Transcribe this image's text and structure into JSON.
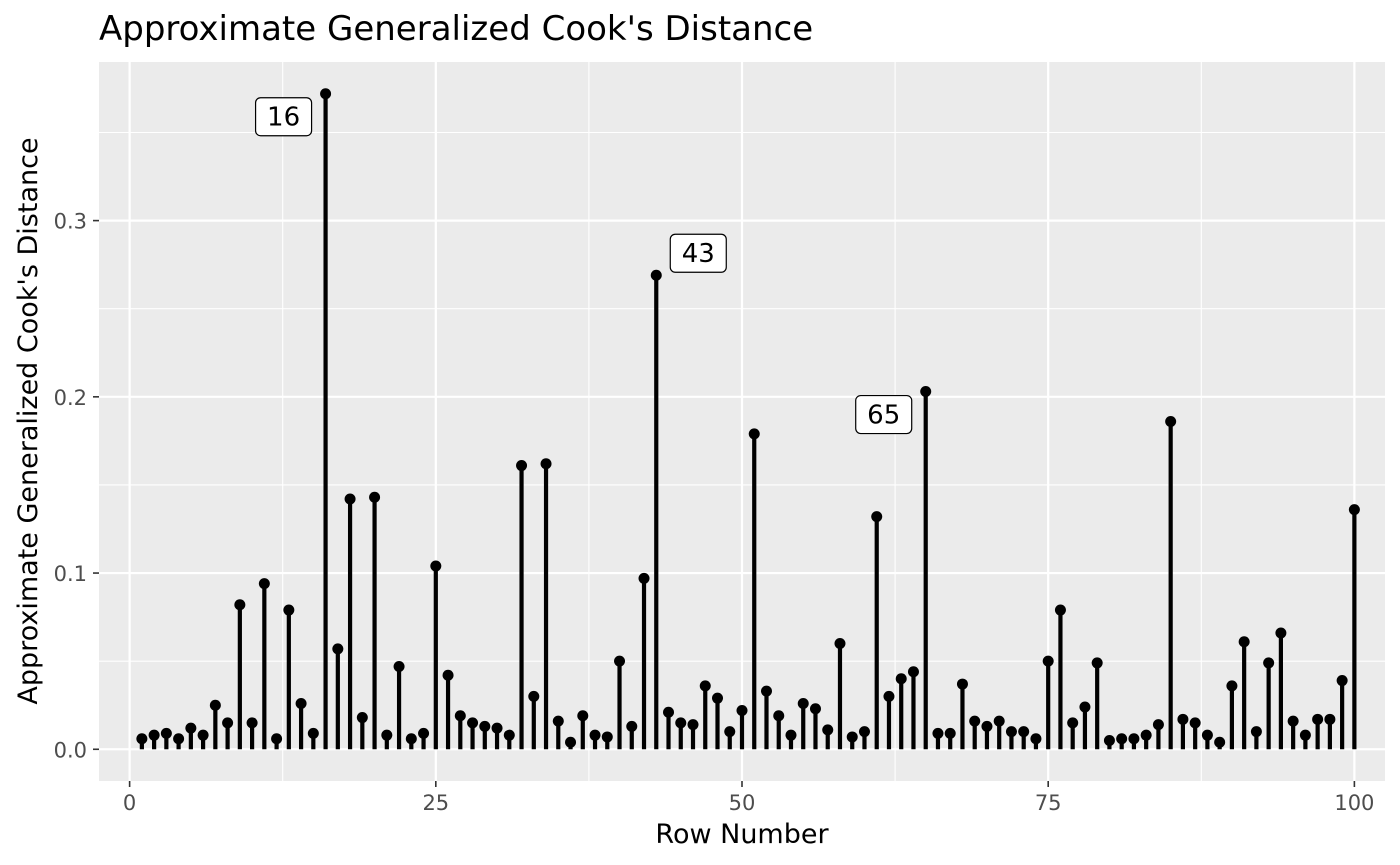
{
  "chart_data": {
    "type": "lollipop",
    "title": "Approximate Generalized Cook's Distance",
    "xlabel": "Row Number",
    "ylabel": "Approximate Generalized Cook's Distance",
    "xlim": [
      -2.5,
      102.5
    ],
    "ylim": [
      -0.018,
      0.39
    ],
    "x_ticks": [
      0,
      25,
      50,
      75,
      100
    ],
    "x_tick_labels": [
      "0",
      "25",
      "50",
      "75",
      "100"
    ],
    "y_ticks": [
      0.0,
      0.1,
      0.2,
      0.3
    ],
    "y_tick_labels": [
      "0.0",
      "0.1",
      "0.2",
      "0.3"
    ],
    "grid": true,
    "colors": {
      "panel": "#ebebeb",
      "grid": "#ffffff",
      "marks": "#000000"
    },
    "x": [
      1,
      2,
      3,
      4,
      5,
      6,
      7,
      8,
      9,
      10,
      11,
      12,
      13,
      14,
      15,
      16,
      17,
      18,
      19,
      20,
      21,
      22,
      23,
      24,
      25,
      26,
      27,
      28,
      29,
      30,
      31,
      32,
      33,
      34,
      35,
      36,
      37,
      38,
      39,
      40,
      41,
      42,
      43,
      44,
      45,
      46,
      47,
      48,
      49,
      50,
      51,
      52,
      53,
      54,
      55,
      56,
      57,
      58,
      59,
      60,
      61,
      62,
      63,
      64,
      65,
      66,
      67,
      68,
      69,
      70,
      71,
      72,
      73,
      74,
      75,
      76,
      77,
      78,
      79,
      80,
      81,
      82,
      83,
      84,
      85,
      86,
      87,
      88,
      89,
      90,
      91,
      92,
      93,
      94,
      95,
      96,
      97,
      98,
      99,
      100
    ],
    "values": [
      0.006,
      0.008,
      0.009,
      0.006,
      0.012,
      0.008,
      0.025,
      0.015,
      0.082,
      0.015,
      0.094,
      0.006,
      0.079,
      0.026,
      0.009,
      0.372,
      0.057,
      0.142,
      0.018,
      0.143,
      0.008,
      0.047,
      0.006,
      0.009,
      0.104,
      0.042,
      0.019,
      0.015,
      0.013,
      0.012,
      0.008,
      0.161,
      0.03,
      0.162,
      0.016,
      0.004,
      0.019,
      0.008,
      0.007,
      0.05,
      0.013,
      0.097,
      0.269,
      0.021,
      0.015,
      0.014,
      0.036,
      0.029,
      0.01,
      0.022,
      0.179,
      0.033,
      0.019,
      0.008,
      0.026,
      0.023,
      0.011,
      0.06,
      0.007,
      0.01,
      0.132,
      0.03,
      0.04,
      0.044,
      0.203,
      0.009,
      0.009,
      0.037,
      0.016,
      0.013,
      0.016,
      0.01,
      0.01,
      0.006,
      0.05,
      0.079,
      0.015,
      0.024,
      0.049,
      0.005,
      0.006,
      0.006,
      0.008,
      0.014,
      0.186,
      0.017,
      0.015,
      0.008,
      0.004,
      0.036,
      0.061,
      0.01,
      0.049,
      0.066,
      0.016,
      0.008,
      0.017,
      0.017,
      0.039,
      0.136
    ],
    "annotations": [
      {
        "label": "16",
        "x": 16,
        "y": 0.372,
        "side": "left"
      },
      {
        "label": "43",
        "x": 43,
        "y": 0.269,
        "side": "right"
      },
      {
        "label": "65",
        "x": 65,
        "y": 0.203,
        "side": "left"
      }
    ]
  }
}
